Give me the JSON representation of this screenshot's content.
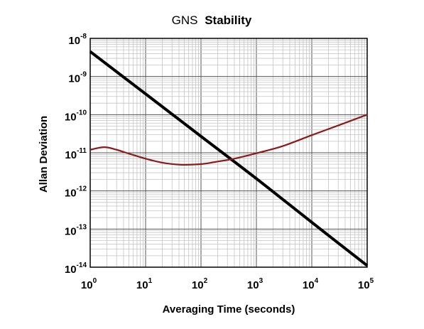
{
  "chart_data": {
    "type": "line",
    "title": {
      "part1": "GNS",
      "part2": "Stability"
    },
    "xlabel": "Averaging Time (seconds)",
    "ylabel": "Allan Deviation",
    "x_scale": "log",
    "y_scale": "log",
    "xlim": [
      1,
      100000
    ],
    "ylim": [
      1e-14,
      1e-08
    ],
    "grid": true,
    "legend": "none",
    "x_ticks": [
      {
        "base": "10",
        "exp": "0",
        "value": 1
      },
      {
        "base": "10",
        "exp": "1",
        "value": 10
      },
      {
        "base": "10",
        "exp": "2",
        "value": 100
      },
      {
        "base": "10",
        "exp": "3",
        "value": 1000
      },
      {
        "base": "10",
        "exp": "4",
        "value": 10000
      },
      {
        "base": "10",
        "exp": "5",
        "value": 100000
      }
    ],
    "y_ticks": [
      {
        "base": "10",
        "exp": "-8",
        "value": 1e-08
      },
      {
        "base": "10",
        "exp": "-9",
        "value": 1e-09
      },
      {
        "base": "10",
        "exp": "-10",
        "value": 1e-10
      },
      {
        "base": "10",
        "exp": "-11",
        "value": 1e-11
      },
      {
        "base": "10",
        "exp": "-12",
        "value": 1e-12
      },
      {
        "base": "10",
        "exp": "-13",
        "value": 1e-13
      },
      {
        "base": "10",
        "exp": "-14",
        "value": 1e-14
      }
    ],
    "series": [
      {
        "color": "#000000",
        "x": [
          1,
          10,
          100,
          1000,
          10000,
          100000
        ],
        "y": [
          4.5e-09,
          3.5e-10,
          2.7e-11,
          2.1e-12,
          1.5e-13,
          1.1e-14
        ]
      },
      {
        "color": "#8b1a1a",
        "x": [
          1,
          1.8,
          3,
          5,
          10,
          20,
          40,
          70,
          120,
          200,
          400,
          1000,
          3000,
          10000,
          30000,
          100000
        ],
        "y": [
          1.2e-11,
          1.4e-11,
          1.2e-11,
          9.5e-12,
          7e-12,
          5.5e-12,
          4.9e-12,
          4.9e-12,
          5.2e-12,
          5.9e-12,
          7e-12,
          9.7e-12,
          1.5e-11,
          2.9e-11,
          5.2e-11,
          1e-10
        ]
      }
    ]
  }
}
